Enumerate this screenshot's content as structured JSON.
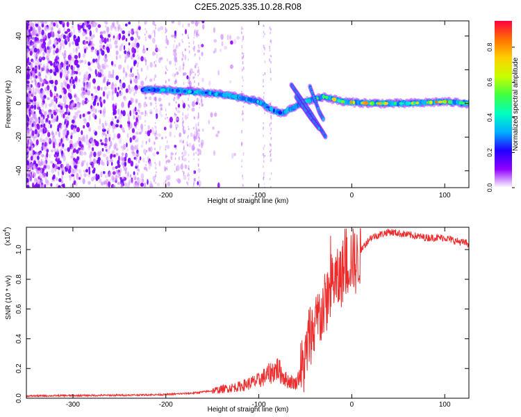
{
  "figure": {
    "title": "C2E5.2025.335.10.28.R08"
  },
  "chart_data": [
    {
      "type": "heatmap",
      "xlabel": "Height of straight line (km)",
      "ylabel": "Frequency (Hz)",
      "xlim": [
        -350,
        126
      ],
      "ylim": [
        -50,
        49
      ],
      "xticks": [
        -300,
        -200,
        -100,
        0,
        100
      ],
      "yticks": [
        -40,
        -20,
        0,
        20,
        40
      ],
      "colorbar": {
        "label": "Normalized spectral amplitude",
        "range": [
          0.0,
          0.95
        ],
        "ticks": [
          0.0,
          0.2,
          0.4,
          0.6,
          0.8
        ],
        "tick_labels": [
          "0.0",
          "0.2",
          "0.4",
          "0.6",
          "0.8"
        ],
        "colormap": [
          "#ffffff",
          "#9000ff",
          "#2000ff",
          "#00b0ff",
          "#00ffc0",
          "#40ff40",
          "#c8ff00",
          "#ffd000",
          "#ff7000",
          "#ff0040"
        ]
      },
      "ridge": [
        {
          "x": -225,
          "y": 8,
          "amp": 0.35
        },
        {
          "x": -200,
          "y": 8,
          "amp": 0.4
        },
        {
          "x": -175,
          "y": 7,
          "amp": 0.4
        },
        {
          "x": -150,
          "y": 6,
          "amp": 0.4
        },
        {
          "x": -125,
          "y": 4,
          "amp": 0.4
        },
        {
          "x": -100,
          "y": 1,
          "amp": 0.4
        },
        {
          "x": -85,
          "y": -4,
          "amp": 0.4
        },
        {
          "x": -75,
          "y": -6,
          "amp": 0.35
        },
        {
          "x": -50,
          "y": 1,
          "amp": 0.5
        },
        {
          "x": -30,
          "y": 4,
          "amp": 0.6
        },
        {
          "x": -10,
          "y": 1,
          "amp": 0.85
        },
        {
          "x": 20,
          "y": 0,
          "amp": 0.85
        },
        {
          "x": 60,
          "y": 0,
          "amp": 0.7
        },
        {
          "x": 100,
          "y": 1,
          "amp": 0.9
        },
        {
          "x": 126,
          "y": 0,
          "amp": 0.6
        }
      ],
      "branches": [
        [
          {
            "x": -65,
            "y": 11
          },
          {
            "x": -45,
            "y": -5
          },
          {
            "x": -28,
            "y": -20
          }
        ],
        [
          {
            "x": -60,
            "y": 4
          },
          {
            "x": -45,
            "y": -8
          },
          {
            "x": -35,
            "y": -15
          }
        ],
        [
          {
            "x": -45,
            "y": 10
          },
          {
            "x": -35,
            "y": -5
          },
          {
            "x": -30,
            "y": -10
          }
        ]
      ]
    },
    {
      "type": "line",
      "xlabel": "Height of straight line (km)",
      "ylabel": "SNR (10 * v/v)",
      "scale_label": "(x10",
      "scale_exponent": "4",
      "scale_suffix": ")",
      "xlim": [
        -350,
        126
      ],
      "ylim": [
        0,
        1.15
      ],
      "xticks": [
        -300,
        -200,
        -100,
        0,
        100
      ],
      "yticks": [
        0.0,
        0.2,
        0.4,
        0.6,
        0.8,
        1.0
      ],
      "ytick_labels": [
        "0.0",
        "0.2",
        "0.4",
        "0.6",
        "0.8",
        "1.0"
      ],
      "grid": false,
      "series": [
        {
          "color": "#ee2c2c",
          "x": [
            -350,
            -300,
            -250,
            -200,
            -170,
            -150,
            -120,
            -100,
            -90,
            -80,
            -70,
            -60,
            -50,
            -45,
            -40,
            -35,
            -30,
            -25,
            -20,
            -15,
            -10,
            -5,
            0,
            5,
            10,
            20,
            30,
            40,
            60,
            80,
            100,
            110,
            126
          ],
          "y": [
            0.015,
            0.018,
            0.02,
            0.025,
            0.035,
            0.05,
            0.08,
            0.12,
            0.16,
            0.2,
            0.12,
            0.1,
            0.25,
            0.45,
            0.45,
            0.55,
            0.6,
            0.7,
            0.8,
            0.78,
            0.85,
            0.9,
            0.95,
            0.9,
            1.0,
            1.08,
            1.1,
            1.12,
            1.1,
            1.08,
            1.08,
            1.06,
            1.04
          ]
        }
      ]
    }
  ]
}
